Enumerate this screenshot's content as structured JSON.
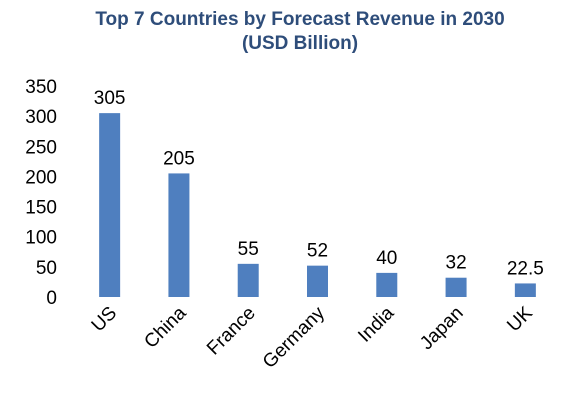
{
  "chart_data": {
    "type": "bar",
    "title": "Top 7 Countries by Forecast Revenue in 2030",
    "subtitle": "(USD Billion)",
    "categories": [
      "US",
      "China",
      "France",
      "Germany",
      "India",
      "Japan",
      "UK"
    ],
    "values": [
      305,
      205,
      55,
      52,
      40,
      32,
      22.5
    ],
    "data_labels": [
      "305",
      "205",
      "55",
      "52",
      "40",
      "32",
      "22.5"
    ],
    "ylim": [
      0,
      350
    ],
    "yticks": [
      0,
      50,
      100,
      150,
      200,
      250,
      300,
      350
    ],
    "xlabel": "",
    "ylabel": "",
    "grid": false,
    "legend": "none",
    "bar_color": "#4f7fbf"
  }
}
